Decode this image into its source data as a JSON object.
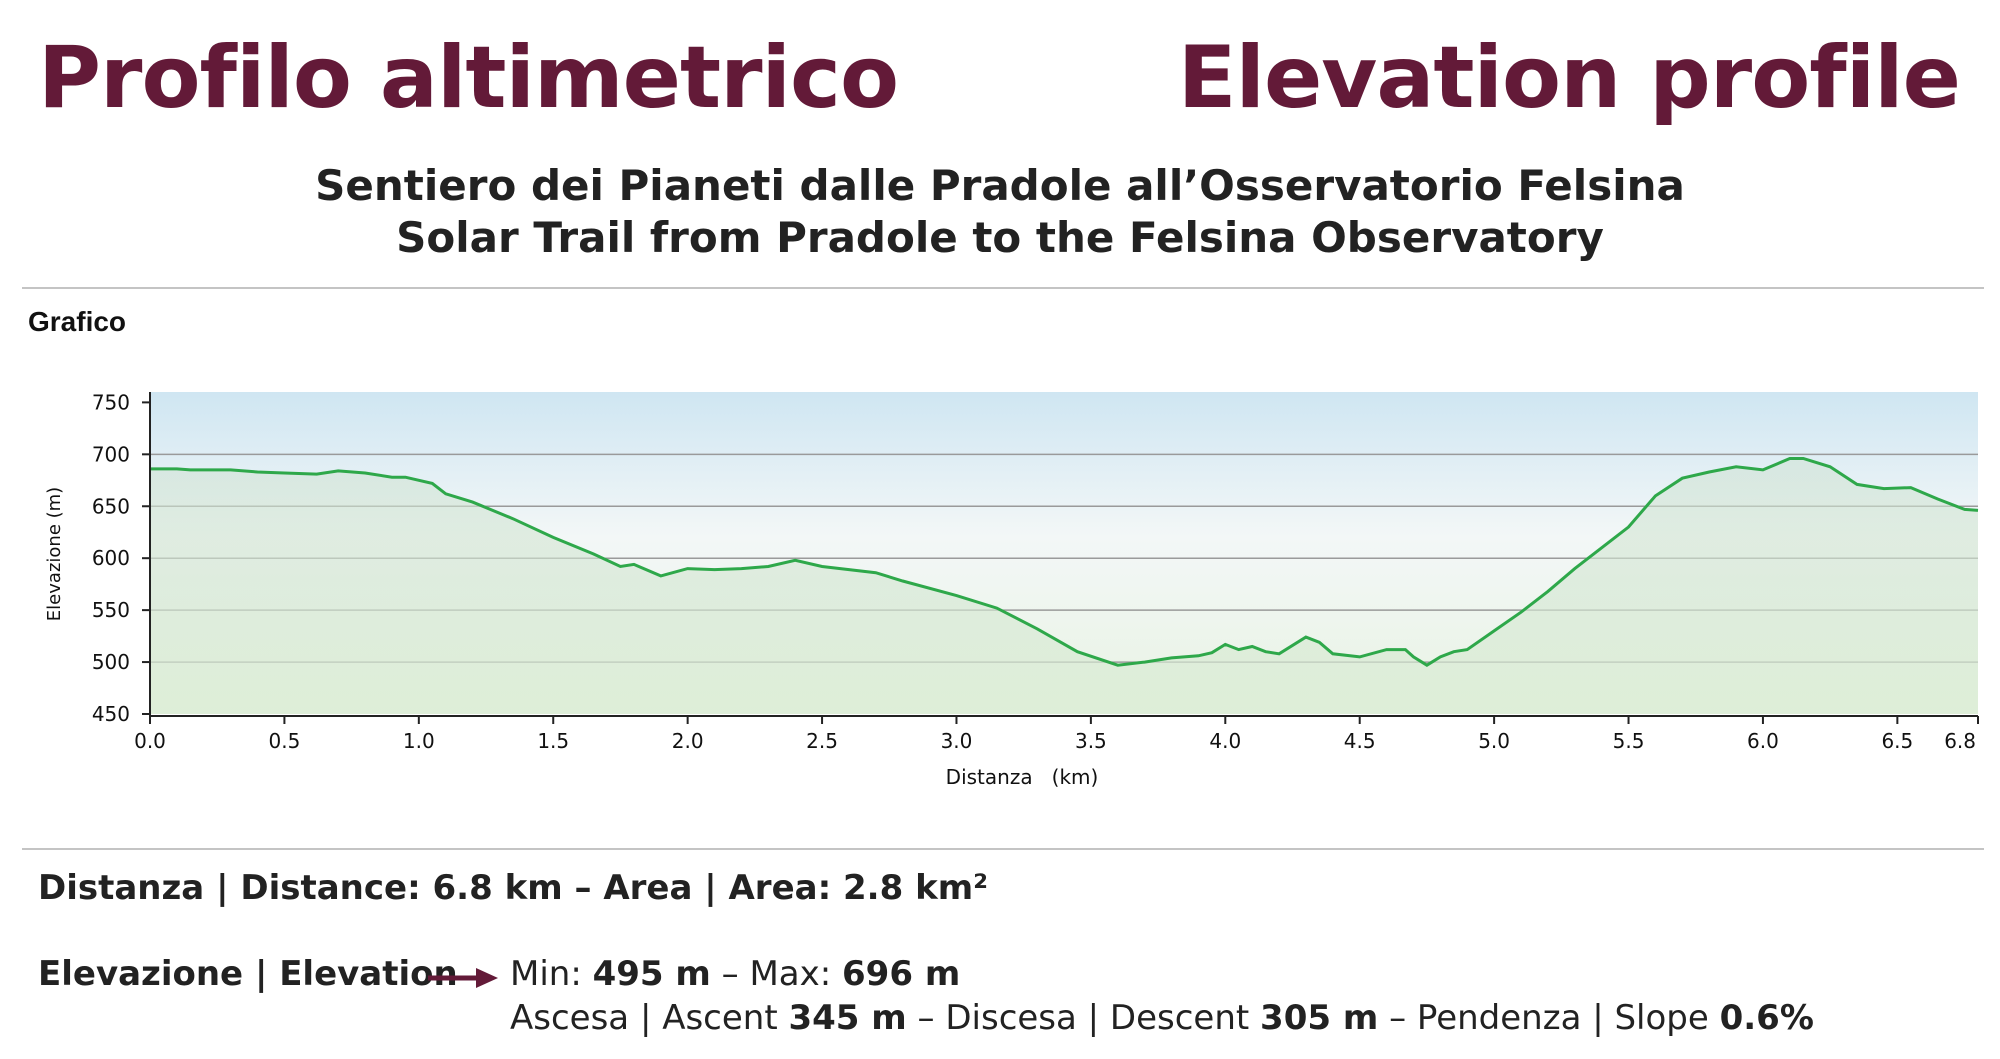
{
  "header": {
    "title_it": "Profilo altimetrico",
    "title_en": "Elevation profile",
    "subtitle_it": "Sentiero dei Pianeti dalle Pradole all’Osservatorio Felsina",
    "subtitle_en": "Solar Trail from Pradole to the Felsina Observatory"
  },
  "section": {
    "label": "Grafico"
  },
  "colors": {
    "title": "#631a38",
    "line": "#2ea84a",
    "sky_top": "#cfe6f2",
    "ground_bottom": "#e8f3e3",
    "grid": "#9a9a9a"
  },
  "chart_data": {
    "type": "area",
    "title": "",
    "xlabel": "Distanza   (km)",
    "ylabel": "Elevazione (m)",
    "xlim": [
      0,
      6.8
    ],
    "ylim": [
      450,
      760
    ],
    "xticks": [
      0,
      0.5,
      1,
      1.5,
      2,
      2.5,
      3,
      3.5,
      4,
      4.5,
      5,
      5.5,
      6,
      6.5,
      6.8
    ],
    "xtick_labels": [
      "0.0",
      "0.5",
      "1.0",
      "1.5",
      "2.0",
      "2.5",
      "3.0",
      "3.5",
      "4.0",
      "4.5",
      "5.0",
      "5.5",
      "6.0",
      "6.5",
      "6.8"
    ],
    "yticks": [
      450,
      500,
      550,
      600,
      650,
      700,
      750
    ],
    "ytick_labels": [
      "450",
      "500",
      "550",
      "600",
      "650",
      "700",
      "750"
    ],
    "grid": "horizontal",
    "series": [
      {
        "x": [
          0,
          0.1,
          0.15,
          0.3,
          0.4,
          0.5,
          0.62,
          0.7,
          0.8,
          0.9,
          0.95,
          1.05,
          1.1,
          1.2,
          1.35,
          1.5,
          1.65,
          1.75,
          1.8,
          1.9,
          2.0,
          2.1,
          2.2,
          2.3,
          2.4,
          2.5,
          2.7,
          2.8,
          3.0,
          3.15,
          3.3,
          3.45,
          3.6,
          3.7,
          3.8,
          3.9,
          3.95,
          4.0,
          4.05,
          4.1,
          4.15,
          4.2,
          4.3,
          4.35,
          4.4,
          4.5,
          4.6,
          4.67,
          4.7,
          4.75,
          4.8,
          4.85,
          4.9,
          5.0,
          5.1,
          5.2,
          5.3,
          5.5,
          5.6,
          5.7,
          5.8,
          5.9,
          6.0,
          6.1,
          6.15,
          6.25,
          6.35,
          6.45,
          6.55,
          6.65,
          6.75,
          6.8
        ],
        "y": [
          686,
          686,
          685,
          685,
          683,
          682,
          681,
          684,
          682,
          678,
          678,
          672,
          662,
          654,
          638,
          620,
          604,
          592,
          594,
          583,
          590,
          589,
          590,
          592,
          598,
          592,
          586,
          578,
          564,
          552,
          532,
          510,
          497,
          500,
          504,
          506,
          509,
          517,
          512,
          515,
          510,
          508,
          524,
          519,
          508,
          505,
          512,
          512,
          505,
          497,
          505,
          510,
          512,
          530,
          548,
          568,
          590,
          630,
          660,
          677,
          683,
          688,
          685,
          696,
          696,
          688,
          671,
          667,
          668,
          657,
          647,
          646
        ]
      }
    ]
  },
  "info": {
    "line1_lbl_a": "Distanza | Distance: ",
    "line1_val_a": "6.8 km",
    "line1_sep": " – ",
    "line1_lbl_b": "Area | Area: ",
    "line1_val_b": "2.8 km²",
    "elev_label": "Elevazione | Elevation",
    "min_lbl": "Min: ",
    "min_val": "495 m",
    "max_lbl": " – Max: ",
    "max_val": "696 m",
    "ascent_lbl": "Ascesa | Ascent ",
    "ascent_val": "345 m",
    "descent_lbl": " – Discesa | Descent ",
    "descent_val": "305 m",
    "slope_lbl": " – Pendenza | Slope ",
    "slope_val": "0.6%"
  }
}
